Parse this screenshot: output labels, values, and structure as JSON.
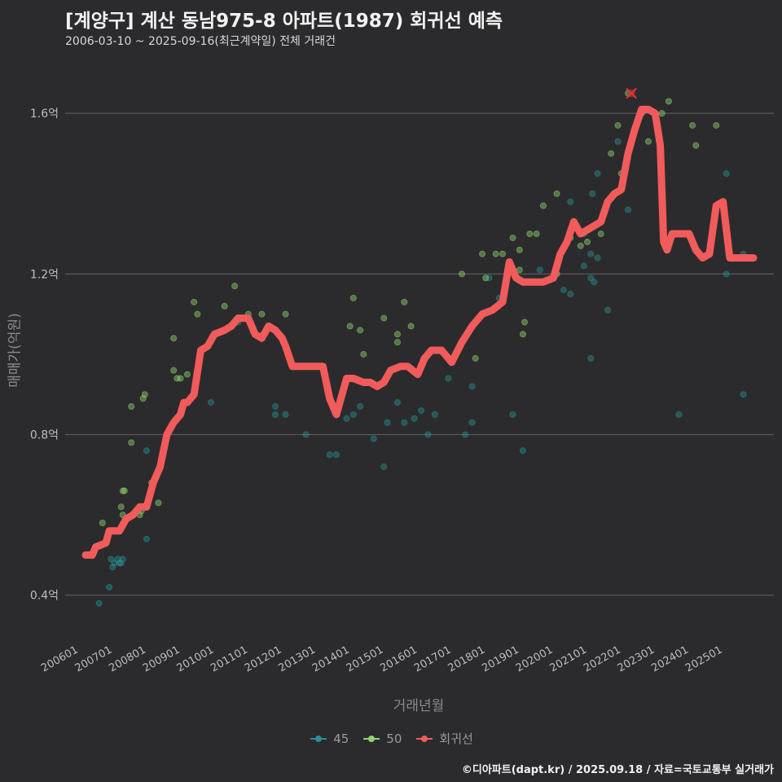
{
  "chart_data": {
    "type": "scatter",
    "title": "[계양구] 계산 동남975-8 아파트(1987) 회귀선 예측",
    "subtitle": "2006-03-10 ~ 2025-09-16(최근계약일) 전체 거래건",
    "xlabel": "거래년월",
    "ylabel": "매매가(억원)",
    "x_unit": "year (decimal)",
    "x_ticks": [
      "200601",
      "200701",
      "200801",
      "200901",
      "201001",
      "201101",
      "201201",
      "201301",
      "201401",
      "201501",
      "201601",
      "201701",
      "201801",
      "201901",
      "202001",
      "202101",
      "202201",
      "202301",
      "202401",
      "202501"
    ],
    "y_ticks": [
      "0.4억",
      "0.8억",
      "1.2억",
      "1.6억"
    ],
    "y_tick_values": [
      0.4,
      0.8,
      1.2,
      1.6
    ],
    "xlim": [
      2005.6,
      2026.5
    ],
    "ylim": [
      0.3,
      1.72
    ],
    "grid": "horizontal",
    "legend_position": "bottom",
    "colors": {
      "s45": "#2a8f8f",
      "s50": "#8fd46e",
      "regression": "#f25b5b",
      "background": "#2b2b2d",
      "grid": "#5a5a5a"
    },
    "series": [
      {
        "name": "45",
        "color": "#2a8f8f",
        "points": [
          [
            2006.6,
            0.38
          ],
          [
            2006.9,
            0.42
          ],
          [
            2007.0,
            0.47
          ],
          [
            2007.05,
            0.48
          ],
          [
            2006.95,
            0.49
          ],
          [
            2007.2,
            0.48
          ],
          [
            2007.25,
            0.48
          ],
          [
            2007.3,
            0.49
          ],
          [
            2007.15,
            0.49
          ],
          [
            2008.0,
            0.54
          ],
          [
            2008.0,
            0.76
          ],
          [
            2009.9,
            0.88
          ],
          [
            2010.7,
            1.08
          ],
          [
            2011.8,
            0.87
          ],
          [
            2011.8,
            0.85
          ],
          [
            2012.1,
            0.85
          ],
          [
            2012.7,
            0.8
          ],
          [
            2013.4,
            0.75
          ],
          [
            2013.6,
            0.75
          ],
          [
            2013.9,
            0.84
          ],
          [
            2014.1,
            0.85
          ],
          [
            2014.3,
            0.87
          ],
          [
            2014.7,
            0.79
          ],
          [
            2015.0,
            0.72
          ],
          [
            2015.1,
            0.83
          ],
          [
            2015.4,
            0.88
          ],
          [
            2015.6,
            0.83
          ],
          [
            2015.9,
            0.84
          ],
          [
            2016.1,
            0.86
          ],
          [
            2016.3,
            0.8
          ],
          [
            2016.5,
            0.85
          ],
          [
            2016.9,
            0.94
          ],
          [
            2017.4,
            0.8
          ],
          [
            2017.6,
            0.83
          ],
          [
            2017.6,
            0.92
          ],
          [
            2018.1,
            1.19
          ],
          [
            2018.4,
            1.14
          ],
          [
            2018.8,
            0.85
          ],
          [
            2019.1,
            0.76
          ],
          [
            2019.6,
            1.21
          ],
          [
            2020.3,
            1.16
          ],
          [
            2020.5,
            1.15
          ],
          [
            2020.5,
            1.38
          ],
          [
            2020.9,
            1.22
          ],
          [
            2020.9,
            1.3
          ],
          [
            2021.1,
            0.99
          ],
          [
            2021.1,
            1.19
          ],
          [
            2021.1,
            1.25
          ],
          [
            2021.15,
            1.4
          ],
          [
            2021.2,
            1.18
          ],
          [
            2021.3,
            1.24
          ],
          [
            2021.3,
            1.45
          ],
          [
            2021.6,
            1.11
          ],
          [
            2021.9,
            1.53
          ],
          [
            2022.2,
            1.36
          ],
          [
            2023.7,
            0.85
          ],
          [
            2025.1,
            1.2
          ],
          [
            2025.1,
            1.45
          ],
          [
            2025.6,
            0.9
          ],
          [
            2025.6,
            1.25
          ]
        ]
      },
      {
        "name": "50",
        "color": "#8fd46e",
        "points": [
          [
            2006.7,
            0.58
          ],
          [
            2007.25,
            0.62
          ],
          [
            2007.3,
            0.66
          ],
          [
            2007.35,
            0.66
          ],
          [
            2007.3,
            0.6
          ],
          [
            2007.55,
            0.78
          ],
          [
            2007.55,
            0.87
          ],
          [
            2007.8,
            0.6
          ],
          [
            2007.85,
            0.61
          ],
          [
            2007.9,
            0.89
          ],
          [
            2007.95,
            0.9
          ],
          [
            2008.15,
            0.68
          ],
          [
            2008.35,
            0.63
          ],
          [
            2008.5,
            0.76
          ],
          [
            2008.8,
            0.96
          ],
          [
            2008.8,
            1.04
          ],
          [
            2008.9,
            0.94
          ],
          [
            2009.0,
            0.94
          ],
          [
            2009.2,
            0.95
          ],
          [
            2009.4,
            1.13
          ],
          [
            2009.5,
            1.1
          ],
          [
            2010.3,
            1.12
          ],
          [
            2010.6,
            1.17
          ],
          [
            2011.0,
            1.1
          ],
          [
            2011.4,
            1.1
          ],
          [
            2012.1,
            1.1
          ],
          [
            2014.0,
            1.07
          ],
          [
            2014.1,
            1.14
          ],
          [
            2014.3,
            1.06
          ],
          [
            2014.4,
            1.0
          ],
          [
            2015.0,
            1.09
          ],
          [
            2015.4,
            1.03
          ],
          [
            2015.6,
            1.13
          ],
          [
            2015.8,
            1.07
          ],
          [
            2015.4,
            1.05
          ],
          [
            2017.3,
            1.2
          ],
          [
            2017.7,
            0.99
          ],
          [
            2017.9,
            1.25
          ],
          [
            2018.0,
            1.19
          ],
          [
            2018.3,
            1.25
          ],
          [
            2018.5,
            1.25
          ],
          [
            2018.8,
            1.29
          ],
          [
            2019.0,
            1.21
          ],
          [
            2019.0,
            1.26
          ],
          [
            2019.1,
            1.05
          ],
          [
            2019.15,
            1.08
          ],
          [
            2019.3,
            1.3
          ],
          [
            2019.5,
            1.3
          ],
          [
            2019.7,
            1.37
          ],
          [
            2020.1,
            1.2
          ],
          [
            2020.1,
            1.4
          ],
          [
            2020.5,
            1.29
          ],
          [
            2020.8,
            1.27
          ],
          [
            2021.0,
            1.28
          ],
          [
            2021.4,
            1.3
          ],
          [
            2021.7,
            1.5
          ],
          [
            2021.9,
            1.57
          ],
          [
            2022.0,
            1.45
          ],
          [
            2022.2,
            1.65
          ],
          [
            2022.6,
            1.6
          ],
          [
            2022.8,
            1.53
          ],
          [
            2023.2,
            1.6
          ],
          [
            2023.4,
            1.63
          ],
          [
            2024.1,
            1.57
          ],
          [
            2024.2,
            1.52
          ],
          [
            2024.8,
            1.57
          ]
        ]
      }
    ],
    "regression": {
      "name": "회귀선",
      "points": [
        [
          2006.2,
          0.5
        ],
        [
          2006.4,
          0.5
        ],
        [
          2006.5,
          0.52
        ],
        [
          2006.8,
          0.53
        ],
        [
          2006.9,
          0.56
        ],
        [
          2007.2,
          0.56
        ],
        [
          2007.4,
          0.59
        ],
        [
          2007.6,
          0.6
        ],
        [
          2007.8,
          0.62
        ],
        [
          2008.0,
          0.62
        ],
        [
          2008.2,
          0.68
        ],
        [
          2008.4,
          0.72
        ],
        [
          2008.6,
          0.8
        ],
        [
          2008.8,
          0.83
        ],
        [
          2009.0,
          0.85
        ],
        [
          2009.1,
          0.88
        ],
        [
          2009.2,
          0.88
        ],
        [
          2009.4,
          0.9
        ],
        [
          2009.6,
          1.01
        ],
        [
          2009.8,
          1.02
        ],
        [
          2010.0,
          1.05
        ],
        [
          2010.3,
          1.06
        ],
        [
          2010.5,
          1.07
        ],
        [
          2010.7,
          1.09
        ],
        [
          2011.0,
          1.09
        ],
        [
          2011.2,
          1.05
        ],
        [
          2011.4,
          1.04
        ],
        [
          2011.6,
          1.07
        ],
        [
          2011.8,
          1.06
        ],
        [
          2012.0,
          1.04
        ],
        [
          2012.1,
          1.02
        ],
        [
          2012.3,
          0.97
        ],
        [
          2012.6,
          0.97
        ],
        [
          2013.0,
          0.97
        ],
        [
          2013.2,
          0.97
        ],
        [
          2013.4,
          0.89
        ],
        [
          2013.6,
          0.85
        ],
        [
          2013.9,
          0.94
        ],
        [
          2014.1,
          0.94
        ],
        [
          2014.4,
          0.93
        ],
        [
          2014.6,
          0.93
        ],
        [
          2014.8,
          0.92
        ],
        [
          2015.0,
          0.93
        ],
        [
          2015.2,
          0.96
        ],
        [
          2015.5,
          0.97
        ],
        [
          2015.7,
          0.97
        ],
        [
          2016.0,
          0.95
        ],
        [
          2016.2,
          0.99
        ],
        [
          2016.4,
          1.01
        ],
        [
          2016.7,
          1.01
        ],
        [
          2017.0,
          0.98
        ],
        [
          2017.3,
          1.03
        ],
        [
          2017.6,
          1.07
        ],
        [
          2017.9,
          1.1
        ],
        [
          2018.2,
          1.11
        ],
        [
          2018.5,
          1.13
        ],
        [
          2018.7,
          1.23
        ],
        [
          2018.9,
          1.19
        ],
        [
          2019.1,
          1.18
        ],
        [
          2019.4,
          1.18
        ],
        [
          2019.7,
          1.18
        ],
        [
          2020.0,
          1.19
        ],
        [
          2020.2,
          1.25
        ],
        [
          2020.4,
          1.28
        ],
        [
          2020.6,
          1.33
        ],
        [
          2020.8,
          1.3
        ],
        [
          2021.0,
          1.31
        ],
        [
          2021.2,
          1.32
        ],
        [
          2021.4,
          1.33
        ],
        [
          2021.6,
          1.38
        ],
        [
          2021.8,
          1.4
        ],
        [
          2022.0,
          1.41
        ],
        [
          2022.2,
          1.5
        ],
        [
          2022.4,
          1.56
        ],
        [
          2022.6,
          1.61
        ],
        [
          2022.8,
          1.61
        ],
        [
          2023.0,
          1.6
        ],
        [
          2023.15,
          1.52
        ],
        [
          2023.25,
          1.28
        ],
        [
          2023.35,
          1.26
        ],
        [
          2023.5,
          1.3
        ],
        [
          2023.7,
          1.3
        ],
        [
          2024.0,
          1.3
        ],
        [
          2024.2,
          1.26
        ],
        [
          2024.4,
          1.24
        ],
        [
          2024.6,
          1.25
        ],
        [
          2024.8,
          1.37
        ],
        [
          2025.0,
          1.38
        ],
        [
          2025.2,
          1.24
        ],
        [
          2025.6,
          1.24
        ],
        [
          2025.9,
          1.24
        ]
      ]
    },
    "marker_x": [
      2022.3,
      1.65
    ]
  },
  "credit": "©디아파트(dapt.kr) / 2025.09.18 / 자료=국토교통부 실거래가"
}
